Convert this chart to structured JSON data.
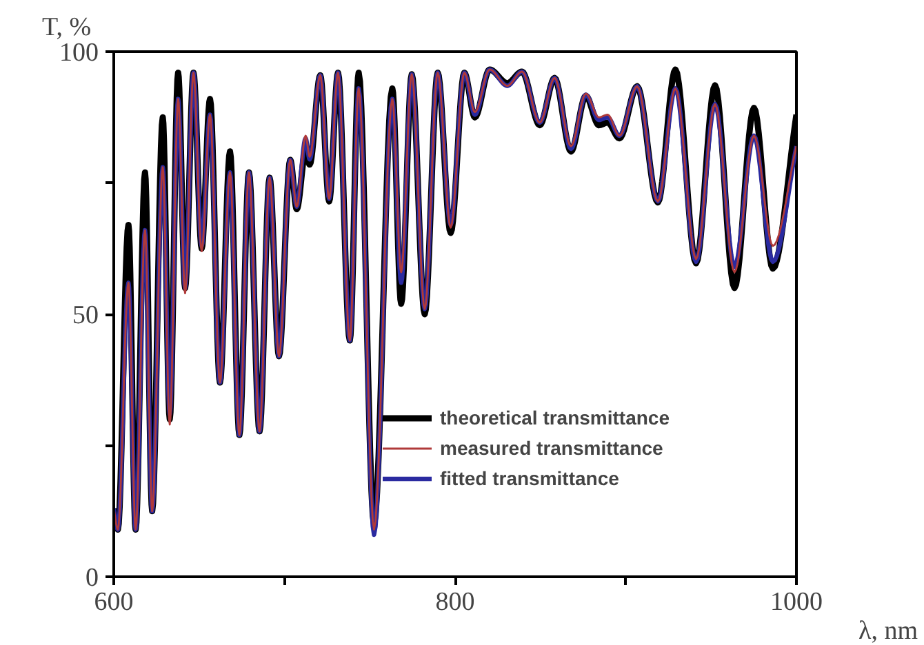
{
  "chart_data": {
    "type": "line",
    "xlabel": "λ, nm",
    "ylabel": "T, %",
    "x": [
      600,
      602.4,
      608.6,
      612.8,
      618.3,
      622.5,
      628.7,
      632.8,
      637.7,
      641.8,
      646.7,
      651.5,
      656.4,
      662.2,
      668.1,
      673.6,
      679.2,
      685.4,
      691.3,
      696.8,
      703.4,
      707.2,
      712.4,
      714.8,
      721,
      726.2,
      731.4,
      738.3,
      743.5,
      752.5,
      763.2,
      768.4,
      774.6,
      782.2,
      789.8,
      797.4,
      805.4,
      811.6,
      820.2,
      830.6,
      839.2,
      849.6,
      858.3,
      867.9,
      876.6,
      884.2,
      889.4,
      896.3,
      906.7,
      918.8,
      929.1,
      941.2,
      952.3,
      963.7,
      975.1,
      986.2,
      1000
    ],
    "series": [
      {
        "name": "theoretical transmittance",
        "color": "#000000",
        "values": [
          13,
          9,
          67,
          9,
          77,
          12.5,
          87.5,
          30,
          96,
          55,
          96,
          62.5,
          91,
          37,
          81,
          27,
          77,
          27.7,
          76,
          42,
          79.4,
          70,
          81,
          78.5,
          95.5,
          71.5,
          96,
          45,
          96,
          10,
          93,
          52,
          95.7,
          50,
          96,
          65.5,
          96,
          87.5,
          96.6,
          94,
          96.2,
          86,
          95,
          81,
          91.6,
          86,
          86.5,
          83.5,
          93.4,
          71.3,
          96.6,
          59.7,
          93.6,
          55,
          89.3,
          58.7,
          88
        ]
      },
      {
        "name": "measured transmittance",
        "color": "#b03a3a",
        "values": [
          13,
          9,
          56,
          9,
          66,
          12.5,
          78,
          29,
          91,
          54,
          96,
          62,
          88,
          37,
          77,
          27,
          77,
          27.7,
          76,
          42,
          79.4,
          70.5,
          84,
          80,
          95.5,
          72,
          96,
          45,
          93,
          9,
          91,
          58,
          95.7,
          51,
          96,
          66.5,
          96,
          88.5,
          96.6,
          93.5,
          96.2,
          86.5,
          95,
          82,
          92,
          87.5,
          88,
          84,
          93.4,
          71.5,
          93,
          60.5,
          90,
          58,
          84,
          63,
          82
        ]
      },
      {
        "name": "fitted transmittance",
        "color": "#2a2aa0",
        "values": [
          13,
          9,
          56,
          9,
          66,
          12.5,
          78,
          31,
          91,
          55,
          96,
          63,
          88,
          37,
          77,
          27,
          77,
          27.7,
          76,
          42,
          79.4,
          70.5,
          83.5,
          79.5,
          95.5,
          72,
          96,
          45,
          93,
          8,
          91,
          56,
          95.7,
          51,
          96,
          67,
          96,
          88,
          96.6,
          93.5,
          96.2,
          86.5,
          95,
          81.5,
          91.8,
          87,
          87.5,
          84,
          93.4,
          71.5,
          93,
          60,
          90,
          59,
          84,
          60,
          82
        ]
      }
    ],
    "xlim": [
      600,
      1000
    ],
    "xticks": [
      600,
      {
        "value": 700,
        "label": null
      },
      800,
      {
        "value": 900,
        "label": null
      },
      1000
    ],
    "ylim": [
      0,
      100
    ],
    "yticks": [
      0,
      {
        "value": 25,
        "label": null
      },
      50,
      {
        "value": 75,
        "label": null
      },
      100
    ],
    "grid": false,
    "legend": "right",
    "marker": "none",
    "line_style": "solid"
  }
}
